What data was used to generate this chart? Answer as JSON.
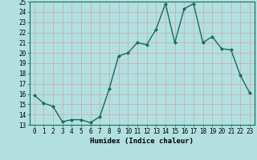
{
  "x": [
    0,
    1,
    2,
    3,
    4,
    5,
    6,
    7,
    8,
    9,
    10,
    11,
    12,
    13,
    14,
    15,
    16,
    17,
    18,
    19,
    20,
    21,
    22,
    23
  ],
  "y": [
    15.9,
    15.1,
    14.8,
    13.3,
    13.5,
    13.5,
    13.2,
    13.8,
    16.5,
    19.7,
    20.0,
    21.0,
    20.8,
    22.3,
    24.8,
    21.0,
    24.3,
    24.8,
    21.0,
    21.6,
    20.4,
    20.3,
    17.8,
    16.1
  ],
  "line_color": "#1a6b5a",
  "marker": "D",
  "marker_size": 2.0,
  "bg_color": "#b2e0e0",
  "grid_color": "#c8a8a8",
  "xlabel": "Humidex (Indice chaleur)",
  "ylim": [
    13,
    25
  ],
  "xlim": [
    -0.5,
    23.5
  ],
  "yticks": [
    13,
    14,
    15,
    16,
    17,
    18,
    19,
    20,
    21,
    22,
    23,
    24,
    25
  ],
  "xticks": [
    0,
    1,
    2,
    3,
    4,
    5,
    6,
    7,
    8,
    9,
    10,
    11,
    12,
    13,
    14,
    15,
    16,
    17,
    18,
    19,
    20,
    21,
    22,
    23
  ],
  "xlabel_fontsize": 6.5,
  "tick_fontsize": 5.5,
  "line_width": 1.0
}
